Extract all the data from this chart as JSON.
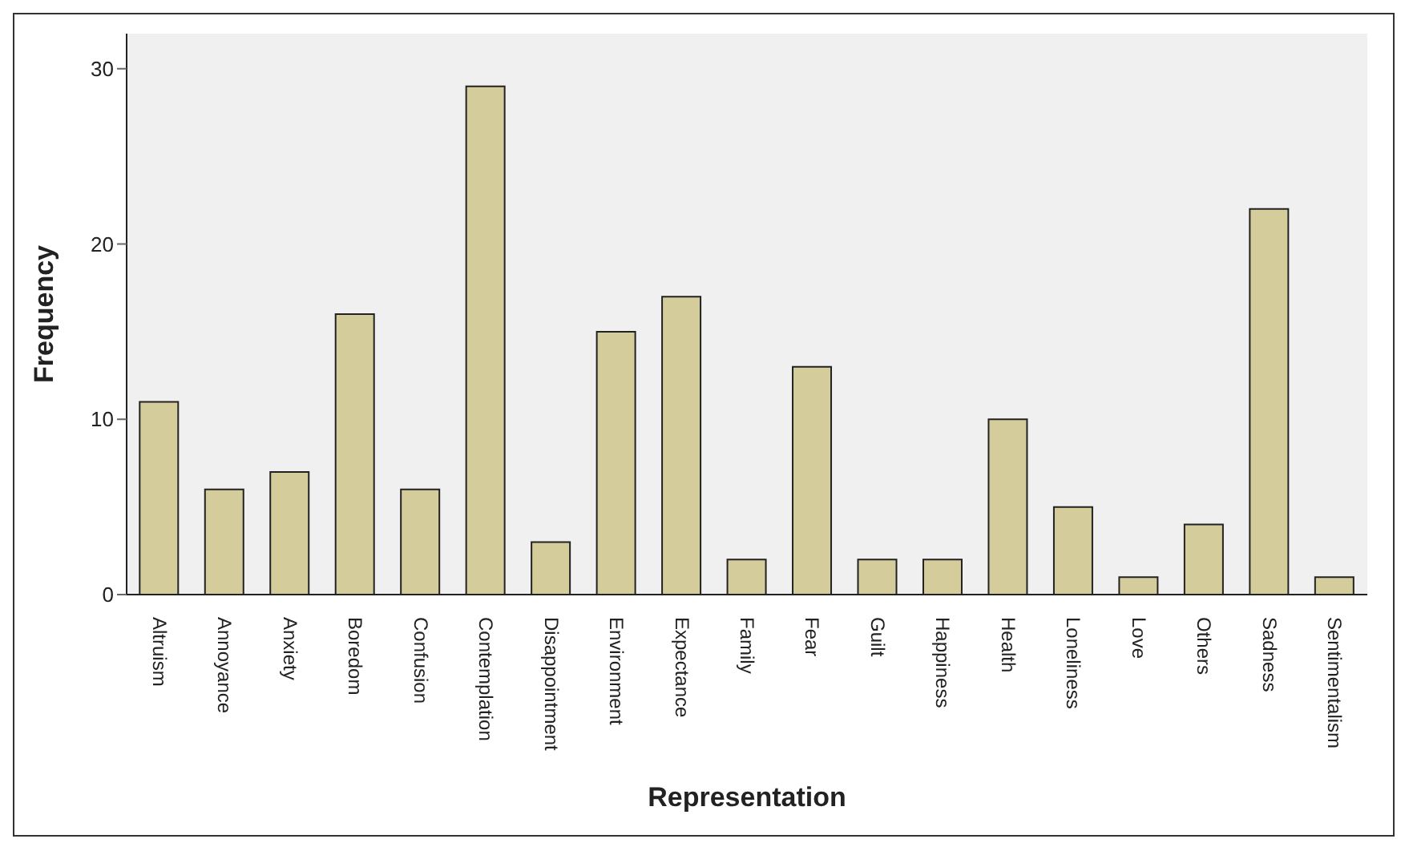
{
  "chart_data": {
    "type": "bar",
    "xlabel": "Representation",
    "ylabel": "Frequency",
    "categories": [
      "Altruism",
      "Annoyance",
      "Anxiety",
      "Boredom",
      "Confusion",
      "Contemplation",
      "Disappointment",
      "Environment",
      "Expectance",
      "Family",
      "Fear",
      "Guilt",
      "Happiness",
      "Health",
      "Loneliness",
      "Love",
      "Others",
      "Sadness",
      "Sentimentalism"
    ],
    "values": [
      11,
      6,
      7,
      16,
      6,
      29,
      3,
      15,
      17,
      2,
      13,
      2,
      2,
      10,
      5,
      1,
      4,
      22,
      1
    ],
    "color": "#d4cd9b",
    "ylim": [
      0,
      32
    ],
    "yticks": [
      0,
      10,
      20,
      30
    ],
    "grid": false
  }
}
